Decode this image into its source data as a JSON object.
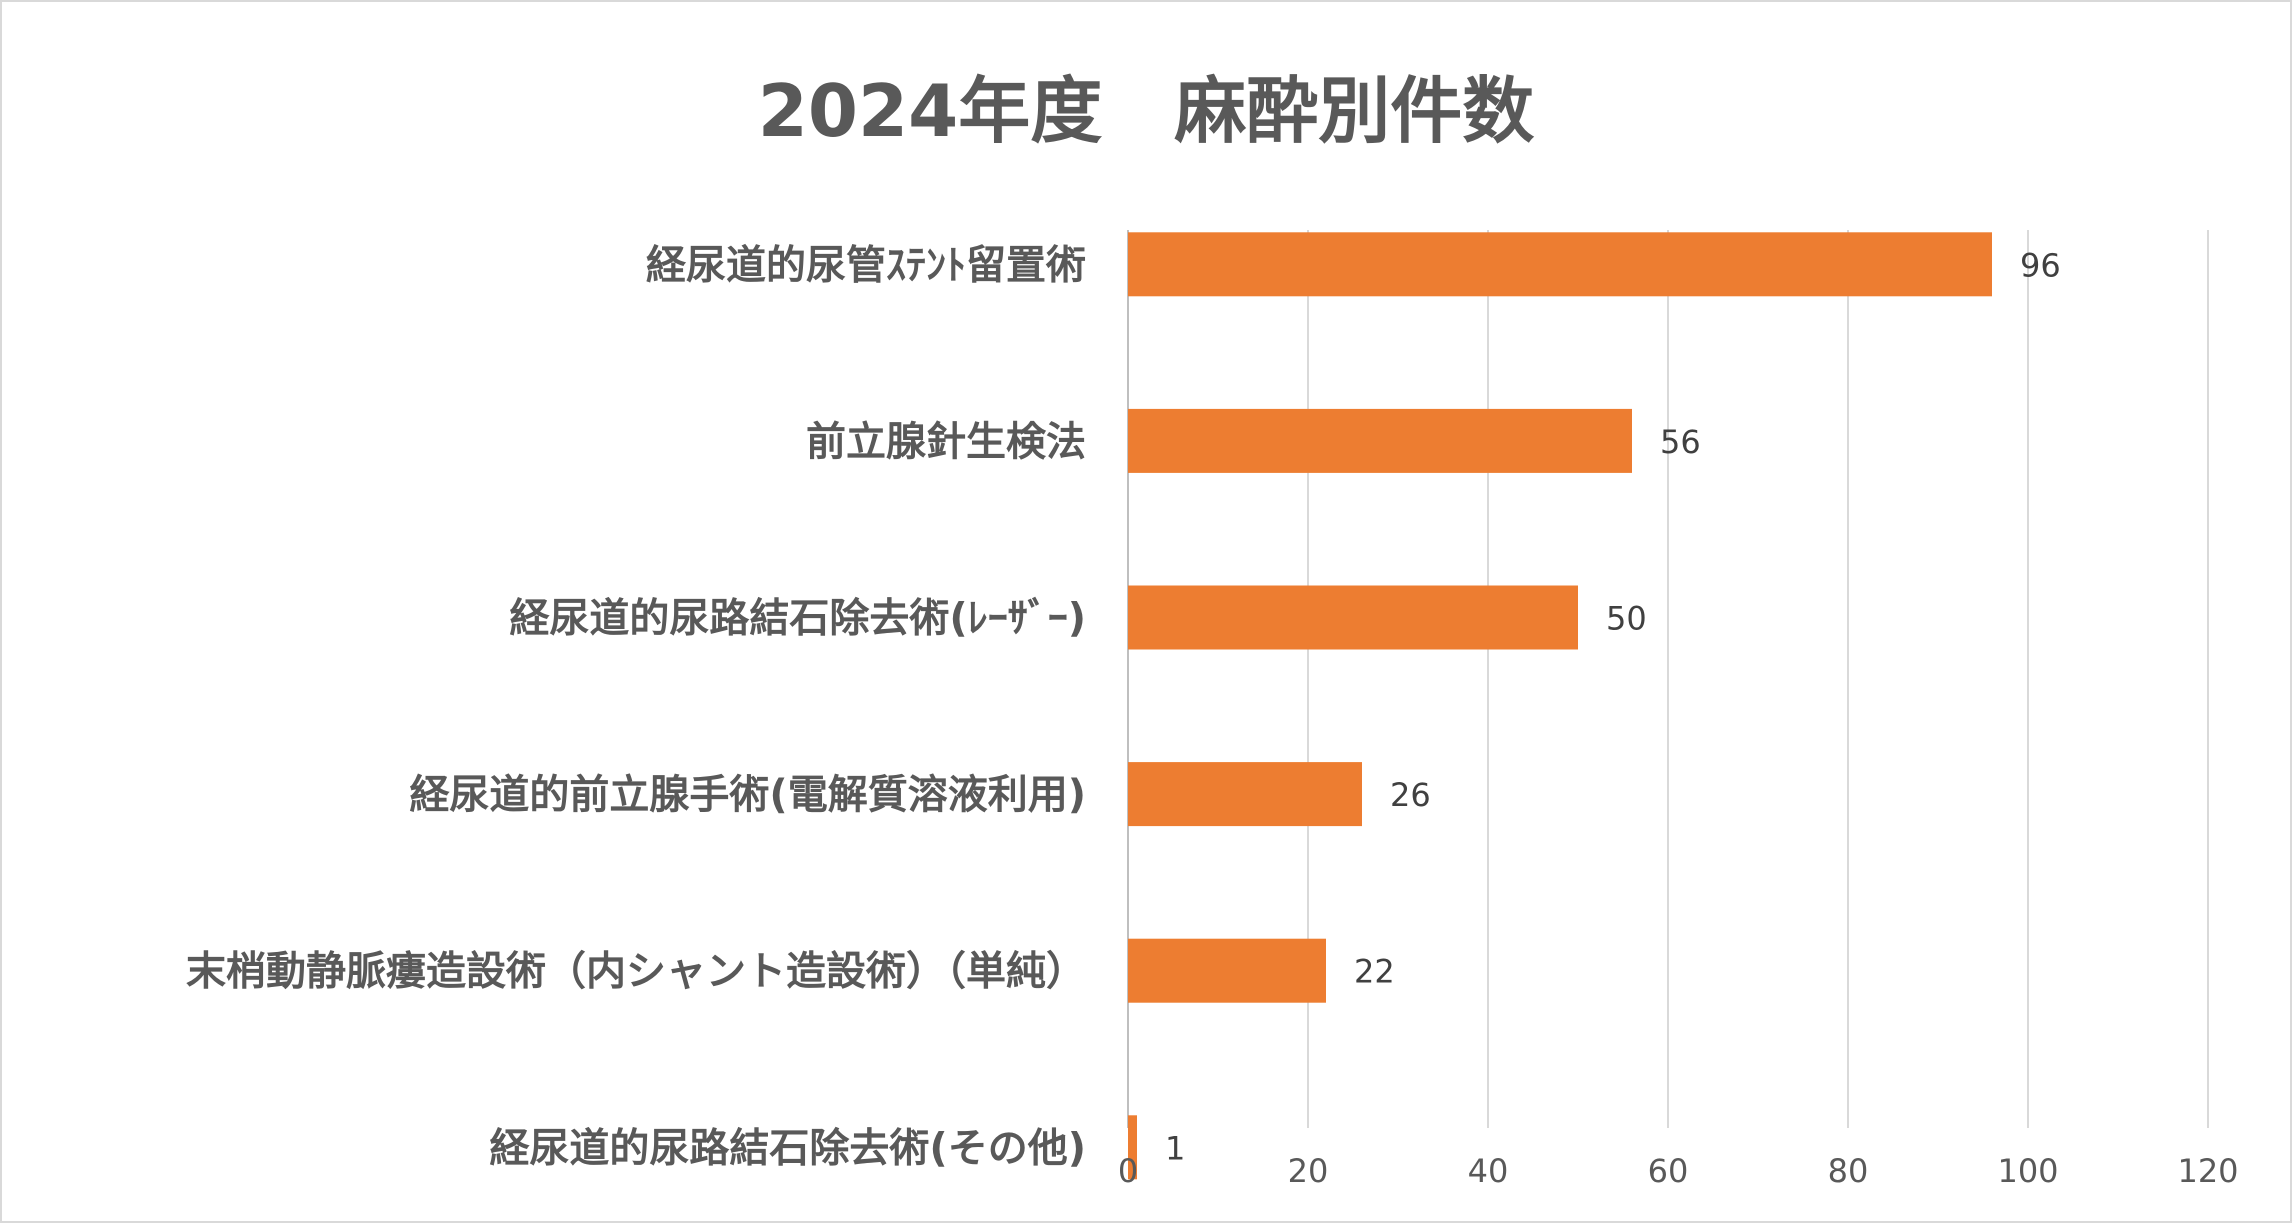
{
  "chart_data": {
    "type": "bar",
    "orientation": "horizontal",
    "title": "2024年度　麻酔別件数",
    "categories": [
      "経尿道的尿管ｽﾃﾝﾄ留置術",
      "前立腺針生検法",
      "経尿道的尿路結石除去術(ﾚｰｻﾞｰ)",
      "経尿道的前立腺手術(電解質溶液利用)",
      "末梢動静脈瘻造設術（内シャント造設術）（単純）",
      "経尿道的尿路結石除去術(その他)"
    ],
    "values": [
      96,
      56,
      50,
      26,
      22,
      1
    ],
    "xlim": [
      0,
      120
    ],
    "xticks": [
      "0",
      "20",
      "40",
      "60",
      "80",
      "100",
      "120"
    ],
    "grid": true,
    "legend": "none",
    "data_labels": true,
    "colors": {
      "bar": "#ED7D31",
      "grid": "#d9d9d9",
      "text": "#595959",
      "frame": "#d9d9d9"
    }
  }
}
